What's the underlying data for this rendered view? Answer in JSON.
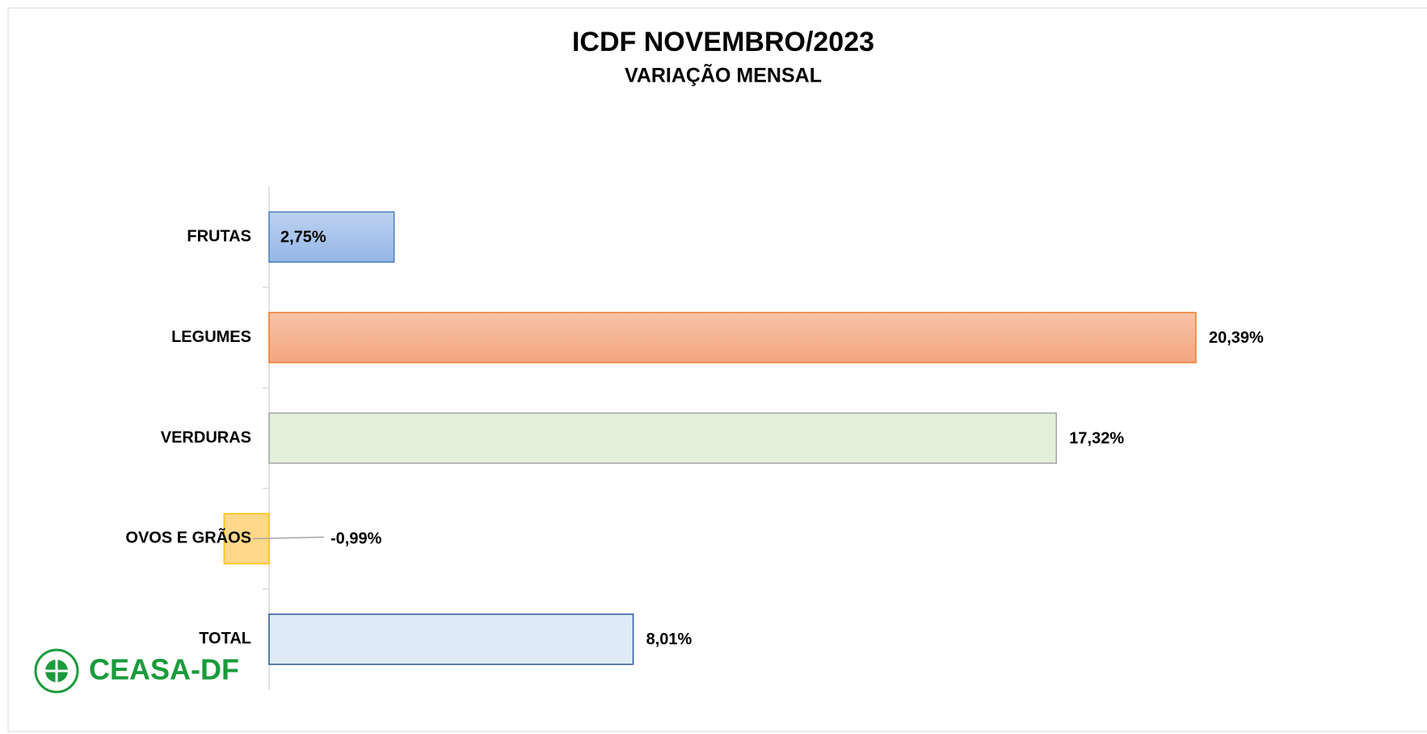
{
  "chart_data": {
    "type": "hbar",
    "title": "ICDF NOVEMBRO/2023",
    "subtitle": "VARIAÇÃO MENSAL",
    "categories": [
      "FRUTAS",
      "LEGUMES",
      "VERDURAS",
      "OVOS E GRÃOS",
      "TOTAL"
    ],
    "values": [
      2.75,
      20.39,
      17.32,
      -0.99,
      8.01
    ],
    "value_labels": [
      "2,75%",
      "20,39%",
      "17,32%",
      "-0,99%",
      "8,01%"
    ],
    "colors": [
      "#a9c4eb",
      "#f4b090",
      "#e2efda",
      "#ffd88a",
      "#deebf7"
    ],
    "border_colors": [
      "#4a7ebb",
      "#ed7d31",
      "#a5a5a5",
      "#ffc000",
      "#2f5597"
    ],
    "logo": "CEASA-DF"
  }
}
